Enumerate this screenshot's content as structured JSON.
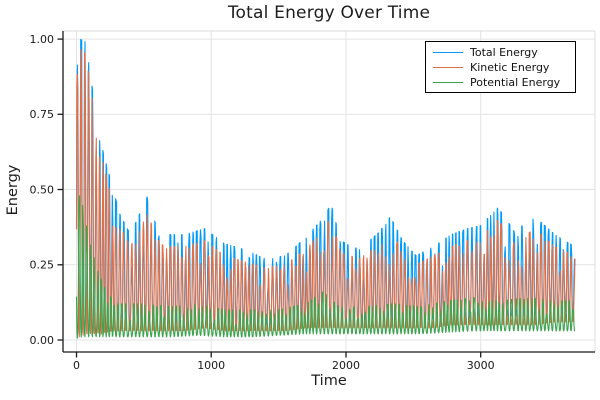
{
  "figure": {
    "background": "#ffffff"
  },
  "colors": {
    "grid": "#e3e3e3",
    "frame_light": "#dcdcdc",
    "spine": "#1a1a1a",
    "tick_label": "#191919",
    "title": "#1c1c1c"
  },
  "chart_data": {
    "type": "line",
    "title": "Total Energy Over Time",
    "xlabel": "Time",
    "ylabel": "Energy",
    "xlim": [
      -100,
      3848
    ],
    "ylim": [
      -0.04,
      1.027
    ],
    "grid": true,
    "legend": {
      "position": "top-right",
      "border": "#000000",
      "background": "#ffffff"
    },
    "xticks": {
      "values": [
        0,
        1000,
        2000,
        3000
      ],
      "labels": [
        "0",
        "1000",
        "2000",
        "3000"
      ]
    },
    "yticks": {
      "values": [
        0,
        0.25,
        0.5,
        0.75,
        1.0
      ],
      "labels": [
        "0.00",
        "0.25",
        "0.50",
        "0.75",
        "1.00"
      ]
    },
    "data_t_range": [
      0,
      3700
    ],
    "oscillation_period": 28,
    "envelope_format": "[t, low, high] approximate band read from plot",
    "series": [
      {
        "name": "Total Energy",
        "color": "#009af9",
        "phase": "in-phase",
        "envelope": [
          [
            0,
            0.02,
            0.88
          ],
          [
            25,
            0.02,
            1.0
          ],
          [
            70,
            0.03,
            0.99
          ],
          [
            110,
            0.03,
            0.86
          ],
          [
            150,
            0.03,
            0.74
          ],
          [
            200,
            0.04,
            0.62
          ],
          [
            260,
            0.04,
            0.52
          ],
          [
            320,
            0.04,
            0.42
          ],
          [
            400,
            0.05,
            0.35
          ],
          [
            470,
            0.05,
            0.42
          ],
          [
            530,
            0.05,
            0.48
          ],
          [
            590,
            0.05,
            0.38
          ],
          [
            650,
            0.05,
            0.35
          ],
          [
            800,
            0.05,
            0.35
          ],
          [
            950,
            0.06,
            0.37
          ],
          [
            1100,
            0.05,
            0.32
          ],
          [
            1250,
            0.05,
            0.3
          ],
          [
            1400,
            0.05,
            0.27
          ],
          [
            1550,
            0.05,
            0.28
          ],
          [
            1700,
            0.06,
            0.34
          ],
          [
            1820,
            0.06,
            0.4
          ],
          [
            1890,
            0.06,
            0.45
          ],
          [
            1960,
            0.06,
            0.33
          ],
          [
            2100,
            0.06,
            0.3
          ],
          [
            2250,
            0.06,
            0.36
          ],
          [
            2330,
            0.06,
            0.41
          ],
          [
            2420,
            0.06,
            0.33
          ],
          [
            2520,
            0.06,
            0.28
          ],
          [
            2650,
            0.07,
            0.31
          ],
          [
            2780,
            0.07,
            0.35
          ],
          [
            2900,
            0.07,
            0.37
          ],
          [
            3000,
            0.08,
            0.38
          ],
          [
            3130,
            0.08,
            0.44
          ],
          [
            3250,
            0.08,
            0.36
          ],
          [
            3400,
            0.08,
            0.41
          ],
          [
            3550,
            0.09,
            0.35
          ],
          [
            3700,
            0.09,
            0.31
          ]
        ]
      },
      {
        "name": "Kinetic Energy",
        "color": "#e36f47",
        "phase": "in-phase",
        "envelope": [
          [
            0,
            0.01,
            0.85
          ],
          [
            25,
            0.01,
            0.97
          ],
          [
            70,
            0.02,
            0.95
          ],
          [
            110,
            0.02,
            0.82
          ],
          [
            150,
            0.02,
            0.7
          ],
          [
            200,
            0.02,
            0.58
          ],
          [
            260,
            0.03,
            0.48
          ],
          [
            320,
            0.03,
            0.38
          ],
          [
            400,
            0.03,
            0.31
          ],
          [
            470,
            0.03,
            0.37
          ],
          [
            530,
            0.03,
            0.42
          ],
          [
            590,
            0.03,
            0.34
          ],
          [
            650,
            0.03,
            0.31
          ],
          [
            800,
            0.03,
            0.31
          ],
          [
            950,
            0.04,
            0.33
          ],
          [
            1100,
            0.03,
            0.28
          ],
          [
            1250,
            0.03,
            0.26
          ],
          [
            1400,
            0.03,
            0.24
          ],
          [
            1550,
            0.03,
            0.25
          ],
          [
            1700,
            0.04,
            0.3
          ],
          [
            1820,
            0.04,
            0.36
          ],
          [
            1890,
            0.04,
            0.41
          ],
          [
            1960,
            0.04,
            0.29
          ],
          [
            2100,
            0.04,
            0.27
          ],
          [
            2250,
            0.04,
            0.32
          ],
          [
            2330,
            0.04,
            0.37
          ],
          [
            2420,
            0.04,
            0.29
          ],
          [
            2520,
            0.04,
            0.25
          ],
          [
            2650,
            0.04,
            0.28
          ],
          [
            2780,
            0.05,
            0.31
          ],
          [
            2900,
            0.05,
            0.33
          ],
          [
            3000,
            0.05,
            0.34
          ],
          [
            3130,
            0.05,
            0.4
          ],
          [
            3250,
            0.05,
            0.32
          ],
          [
            3400,
            0.05,
            0.37
          ],
          [
            3550,
            0.06,
            0.31
          ],
          [
            3700,
            0.06,
            0.28
          ]
        ]
      },
      {
        "name": "Potential Energy",
        "color": "#3da44e",
        "phase": "anti-phase",
        "envelope": [
          [
            0,
            0.005,
            0.5
          ],
          [
            40,
            0.01,
            0.46
          ],
          [
            90,
            0.01,
            0.34
          ],
          [
            150,
            0.01,
            0.24
          ],
          [
            220,
            0.01,
            0.16
          ],
          [
            300,
            0.01,
            0.12
          ],
          [
            500,
            0.01,
            0.12
          ],
          [
            700,
            0.01,
            0.11
          ],
          [
            900,
            0.015,
            0.12
          ],
          [
            1100,
            0.01,
            0.1
          ],
          [
            1300,
            0.01,
            0.1
          ],
          [
            1500,
            0.015,
            0.1
          ],
          [
            1700,
            0.02,
            0.12
          ],
          [
            1830,
            0.02,
            0.16
          ],
          [
            1950,
            0.02,
            0.11
          ],
          [
            2150,
            0.02,
            0.11
          ],
          [
            2350,
            0.02,
            0.12
          ],
          [
            2550,
            0.02,
            0.11
          ],
          [
            2750,
            0.025,
            0.13
          ],
          [
            2950,
            0.03,
            0.14
          ],
          [
            3150,
            0.03,
            0.13
          ],
          [
            3350,
            0.03,
            0.14
          ],
          [
            3550,
            0.03,
            0.13
          ],
          [
            3700,
            0.03,
            0.13
          ]
        ]
      }
    ]
  }
}
